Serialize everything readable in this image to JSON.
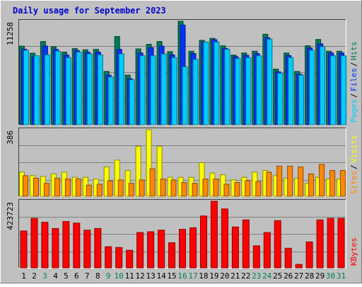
{
  "chart_data": {
    "type": "bar",
    "title": "Daily usage for September 2023",
    "categories": [
      "1",
      "2",
      "3",
      "4",
      "5",
      "6",
      "7",
      "8",
      "9",
      "10",
      "11",
      "12",
      "13",
      "14",
      "15",
      "16",
      "17",
      "18",
      "19",
      "20",
      "21",
      "22",
      "23",
      "24",
      "25",
      "26",
      "27",
      "28",
      "29",
      "30",
      "31"
    ],
    "weekend_days": [
      3,
      9,
      10,
      16,
      17,
      23,
      24,
      30,
      31
    ],
    "panels": [
      {
        "id": "top",
        "max_label": "11258",
        "max": 11258,
        "series": [
          {
            "name": "Hits",
            "color": "#007a5a",
            "values": [
              8550,
              7780,
              9050,
              8500,
              7900,
              8280,
              8150,
              8200,
              5800,
              9600,
              5400,
              8250,
              8750,
              9050,
              7950,
              11258,
              8000,
              9180,
              9400,
              8580,
              7580,
              7800,
              8000,
              9850,
              6050,
              7800,
              5800,
              8600,
              9280,
              8000,
              8000
            ]
          },
          {
            "name": "Files",
            "color": "#0033ff",
            "values": [
              8220,
              7380,
              8560,
              8200,
              7580,
              8070,
              7880,
              7900,
              5400,
              8200,
              5000,
              7800,
              8400,
              8550,
              7600,
              10850,
              7750,
              9000,
              9250,
              8300,
              7400,
              7550,
              7750,
              9460,
              5760,
              7520,
              5500,
              8360,
              8800,
              7800,
              7800
            ]
          },
          {
            "name": "Pages",
            "color": "#00ccff",
            "values": [
              8100,
              7500,
              7600,
              8000,
              7300,
              7900,
              7700,
              7600,
              5200,
              7700,
              4900,
              7500,
              7500,
              7700,
              7300,
              6300,
              7100,
              9000,
              9000,
              8200,
              7200,
              7300,
              7500,
              9300,
              5600,
              7300,
              5400,
              8100,
              8500,
              7500,
              7500
            ]
          }
        ]
      },
      {
        "id": "mid",
        "max_label": "386",
        "max": 386,
        "series": [
          {
            "name": "Visits",
            "color": "#ffff00",
            "values": [
              140,
              120,
              115,
              130,
              140,
              110,
              110,
              100,
              170,
              210,
              150,
              290,
              386,
              290,
              110,
              110,
              110,
              195,
              135,
              125,
              95,
              110,
              140,
              150,
              120,
              105,
              105,
              75,
              110,
              100,
              100
            ]
          },
          {
            "name": "Sites",
            "color": "#ff8800",
            "values": [
              120,
              105,
              75,
              105,
              100,
              100,
              65,
              70,
              90,
              95,
              75,
              95,
              160,
              100,
              95,
              80,
              75,
              100,
              100,
              70,
              80,
              90,
              85,
              140,
              175,
              175,
              170,
              130,
              185,
              150,
              150
            ]
          }
        ]
      },
      {
        "id": "bot",
        "max_label": "423723",
        "max": 423723,
        "series": [
          {
            "name": "KBytes",
            "color": "#ff0000",
            "values": [
              235000,
              315000,
              290000,
              250000,
              295000,
              285000,
              240000,
              250000,
              135000,
              130000,
              112000,
              225000,
              230000,
              240000,
              160000,
              245000,
              255000,
              330000,
              423723,
              375000,
              260000,
              305000,
              140000,
              225000,
              300000,
              125000,
              22000,
              165000,
              305000,
              315000,
              315000
            ]
          }
        ]
      }
    ],
    "legend_side": "right"
  }
}
